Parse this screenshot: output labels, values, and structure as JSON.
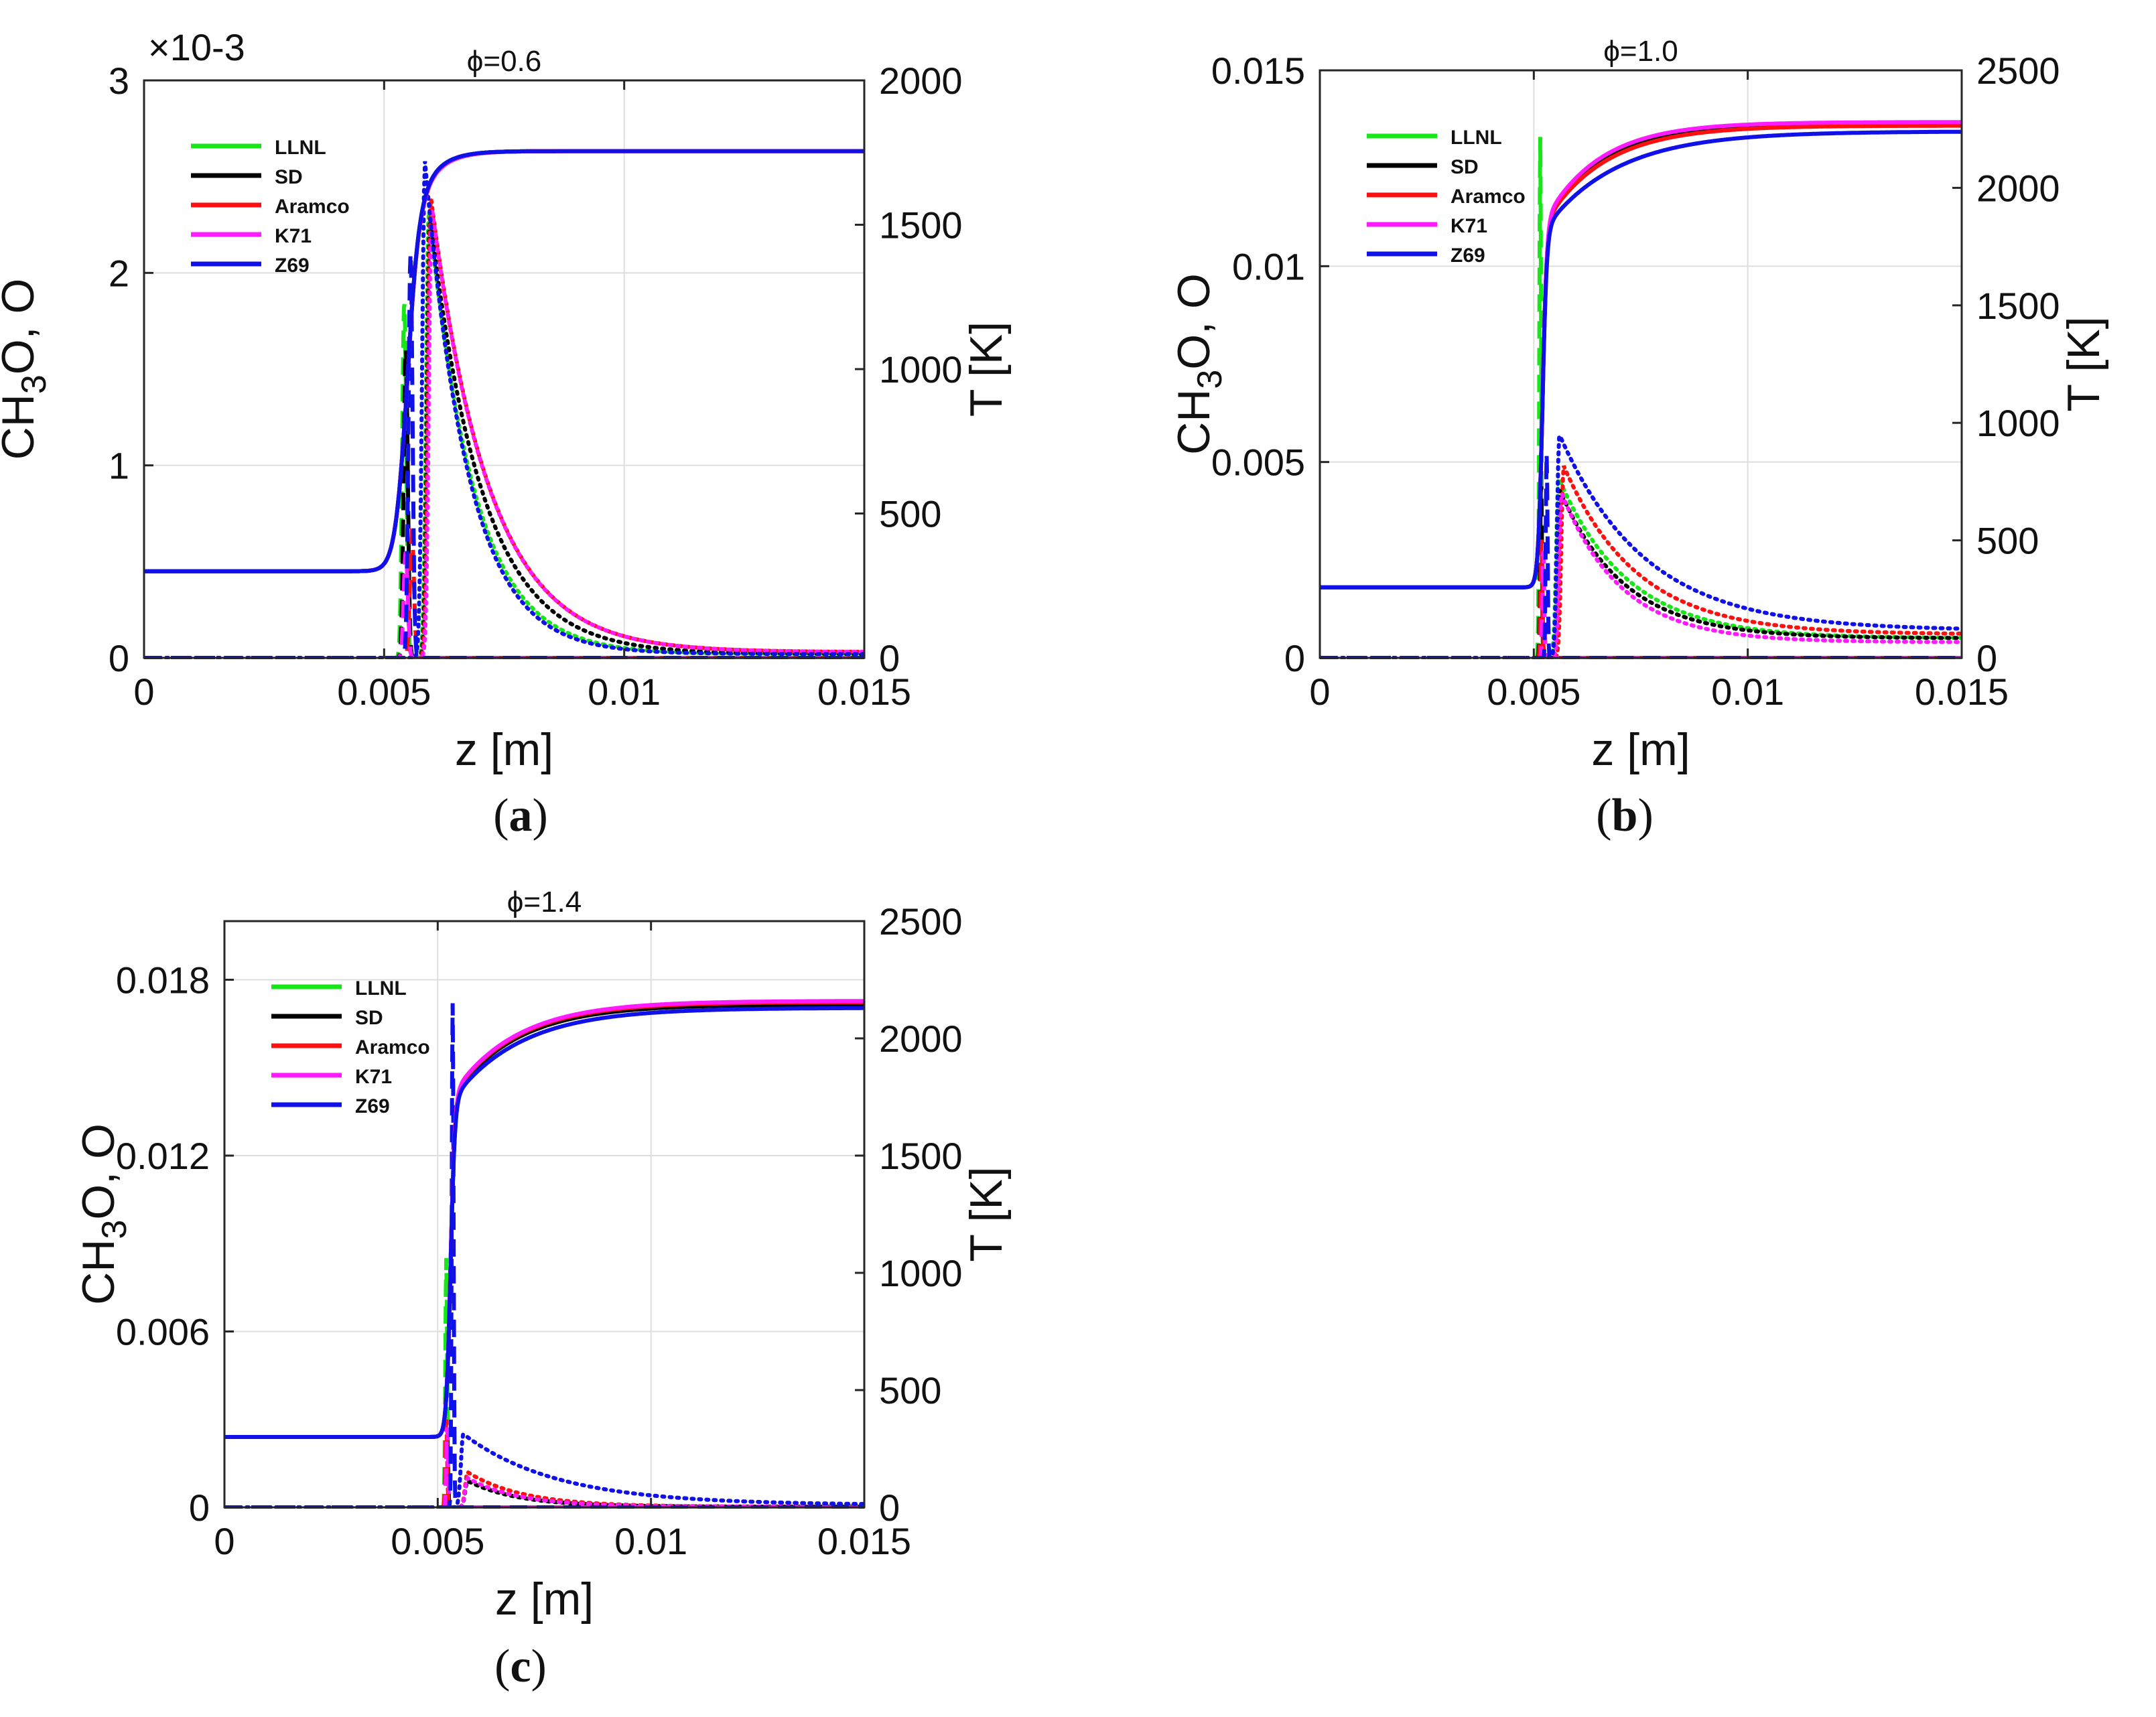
{
  "figure": {
    "panels": [
      {
        "caption": "(a)",
        "caption_letter": "a",
        "phi_label": "ϕ=0.6"
      },
      {
        "caption": "(b)",
        "caption_letter": "b",
        "phi_label": "ϕ=1.0"
      },
      {
        "caption": "(c)",
        "caption_letter": "c",
        "phi_label": "ϕ=1.4"
      }
    ]
  },
  "chart_data": [
    {
      "type": "line",
      "title": "ϕ=0.6",
      "xlabel": "z [m]",
      "ylabel": "CH3O, O",
      "y2label": "T [K]",
      "xlim": [
        0,
        0.015
      ],
      "ylim": [
        0,
        0.003
      ],
      "y2lim": [
        0,
        2000
      ],
      "xticks": [
        "0",
        "0.005",
        "0.01",
        "0.015"
      ],
      "yticks": [
        "0",
        "1",
        "2",
        "3"
      ],
      "y2ticks": [
        "0",
        "500",
        "1000",
        "1500",
        "2000"
      ],
      "yscale_label": "×10-3",
      "grid": true,
      "legend_position": "top-left",
      "legend": [
        "LLNL",
        "SD",
        "Aramco",
        "K71",
        "Z69"
      ],
      "colors": [
        "#19e619",
        "#000000",
        "#ff1010",
        "#ff1aff",
        "#1010e8"
      ],
      "series": [
        {
          "name": "LLNL",
          "temperature": {
            "T0": 300,
            "Tmax": 1755,
            "z0": 0.00545,
            "w": 0.00012,
            "tau": 0.0004
          },
          "ch3o": {
            "peak": 0.00185,
            "zp": 0.00542,
            "w": 6e-05
          },
          "o": {
            "peak": 0.00233,
            "zp": 0.00593,
            "rise": 8e-05,
            "decay": 0.00095,
            "tail": 2e-05
          }
        },
        {
          "name": "SD",
          "temperature": {
            "T0": 300,
            "Tmax": 1755,
            "z0": 0.00545,
            "w": 0.00012,
            "tau": 0.0004
          },
          "ch3o": {
            "peak": 0.0016,
            "zp": 0.00545,
            "w": 6e-05
          },
          "o": {
            "peak": 0.0023,
            "zp": 0.00595,
            "rise": 8e-05,
            "decay": 0.0011,
            "tail": 2e-05
          }
        },
        {
          "name": "Aramco",
          "temperature": {
            "T0": 300,
            "Tmax": 1755,
            "z0": 0.00545,
            "w": 0.00012,
            "tau": 0.00042
          },
          "ch3o": {
            "peak": 0.00065,
            "zp": 0.00558,
            "w": 6e-05
          },
          "o": {
            "peak": 0.0024,
            "zp": 0.00597,
            "rise": 8e-05,
            "decay": 0.0012,
            "tail": 3e-05
          }
        },
        {
          "name": "K71",
          "temperature": {
            "T0": 300,
            "Tmax": 1755,
            "z0": 0.00545,
            "w": 0.00012,
            "tau": 0.00042
          },
          "ch3o": {
            "peak": 0.00055,
            "zp": 0.00545,
            "w": 6e-05
          },
          "o": {
            "peak": 0.00235,
            "zp": 0.00599,
            "rise": 8e-05,
            "decay": 0.0012,
            "tail": 3e-05
          }
        },
        {
          "name": "Z69",
          "temperature": {
            "T0": 300,
            "Tmax": 1755,
            "z0": 0.00545,
            "w": 0.00012,
            "tau": 0.0004
          },
          "ch3o": {
            "peak": 0.0021,
            "zp": 0.00555,
            "w": 6e-05
          },
          "o": {
            "peak": 0.00258,
            "zp": 0.00585,
            "rise": 8e-05,
            "decay": 0.0009,
            "tail": 2e-05
          }
        }
      ]
    },
    {
      "type": "line",
      "title": "ϕ=1.0",
      "xlabel": "z [m]",
      "ylabel": "CH3O, O",
      "y2label": "T [K]",
      "xlim": [
        0,
        0.015
      ],
      "ylim": [
        0,
        0.015
      ],
      "y2lim": [
        0,
        2500
      ],
      "xticks": [
        "0",
        "0.005",
        "0.01",
        "0.015"
      ],
      "yticks": [
        "0",
        "0.005",
        "0.01",
        "0.015"
      ],
      "y2ticks": [
        "0",
        "500",
        "1000",
        "1500",
        "2000",
        "2500"
      ],
      "grid": true,
      "legend_position": "top-left",
      "legend": [
        "LLNL",
        "SD",
        "Aramco",
        "K71",
        "Z69"
      ],
      "colors": [
        "#19e619",
        "#000000",
        "#ff1010",
        "#ff1aff",
        "#1010e8"
      ],
      "series": [
        {
          "name": "LLNL",
          "temperature": {
            "T0": 300,
            "Tmax": 2270,
            "z0": 0.0052,
            "w": 5e-05,
            "tau": 0.0013
          },
          "ch3o": {
            "peak": 0.0133,
            "zp": 0.00515,
            "w": 3e-05
          },
          "o": {
            "peak": 0.0046,
            "zp": 0.00558,
            "rise": 8e-05,
            "decay": 0.0016,
            "tail": 0.0005
          }
        },
        {
          "name": "SD",
          "temperature": {
            "T0": 300,
            "Tmax": 2265,
            "z0": 0.0052,
            "w": 5e-05,
            "tau": 0.0013
          },
          "ch3o": {
            "peak": 0.0045,
            "zp": 0.00517,
            "w": 3e-05
          },
          "o": {
            "peak": 0.0043,
            "zp": 0.0056,
            "rise": 8e-05,
            "decay": 0.0015,
            "tail": 0.0005
          }
        },
        {
          "name": "Aramco",
          "temperature": {
            "T0": 300,
            "Tmax": 2265,
            "z0": 0.0052,
            "w": 5e-05,
            "tau": 0.0014
          },
          "ch3o": {
            "peak": 0.0031,
            "zp": 0.00518,
            "w": 3e-05
          },
          "o": {
            "peak": 0.0049,
            "zp": 0.0057,
            "rise": 8e-05,
            "decay": 0.0017,
            "tail": 0.0006
          }
        },
        {
          "name": "K71",
          "temperature": {
            "T0": 300,
            "Tmax": 2280,
            "z0": 0.0052,
            "w": 5e-05,
            "tau": 0.0013
          },
          "ch3o": {
            "peak": 0.0028,
            "zp": 0.00522,
            "w": 3e-05
          },
          "o": {
            "peak": 0.0042,
            "zp": 0.00565,
            "rise": 8e-05,
            "decay": 0.0014,
            "tail": 0.0004
          }
        },
        {
          "name": "Z69",
          "temperature": {
            "T0": 300,
            "Tmax": 2240,
            "z0": 0.0052,
            "w": 5e-05,
            "tau": 0.0017
          },
          "ch3o": {
            "peak": 0.0052,
            "zp": 0.0053,
            "w": 3e-05
          },
          "o": {
            "peak": 0.0057,
            "zp": 0.0056,
            "rise": 8e-05,
            "decay": 0.002,
            "tail": 0.0007
          }
        }
      ]
    },
    {
      "type": "line",
      "title": "ϕ=1.4",
      "xlabel": "z [m]",
      "ylabel": "CH3O, O",
      "y2label": "T [K]",
      "xlim": [
        0,
        0.015
      ],
      "ylim": [
        0,
        0.02
      ],
      "y2lim": [
        0,
        2500
      ],
      "xticks": [
        "0",
        "0.005",
        "0.01",
        "0.015"
      ],
      "yticks": [
        "0",
        "0.006",
        "0.012",
        "0.018"
      ],
      "y2ticks": [
        "0",
        "500",
        "1000",
        "1500",
        "2000",
        "2500"
      ],
      "grid": true,
      "legend_position": "top-left",
      "legend": [
        "LLNL",
        "SD",
        "Aramco",
        "K71",
        "Z69"
      ],
      "colors": [
        "#19e619",
        "#000000",
        "#ff1010",
        "#ff1aff",
        "#1010e8"
      ],
      "series": [
        {
          "name": "LLNL",
          "temperature": {
            "T0": 300,
            "Tmax": 2150,
            "z0": 0.0053,
            "w": 5e-05,
            "tau": 0.0015
          },
          "ch3o": {
            "peak": 0.0085,
            "zp": 0.0052,
            "w": 3e-05
          },
          "o": {
            "peak": 0.0009,
            "zp": 0.0057,
            "rise": 8e-05,
            "decay": 0.0012,
            "tail": 2e-05
          }
        },
        {
          "name": "SD",
          "temperature": {
            "T0": 300,
            "Tmax": 2145,
            "z0": 0.0053,
            "w": 5e-05,
            "tau": 0.0015
          },
          "ch3o": {
            "peak": 0.0025,
            "zp": 0.00522,
            "w": 3e-05
          },
          "o": {
            "peak": 0.0009,
            "zp": 0.0057,
            "rise": 8e-05,
            "decay": 0.0012,
            "tail": 2e-05
          }
        },
        {
          "name": "Aramco",
          "temperature": {
            "T0": 300,
            "Tmax": 2155,
            "z0": 0.0053,
            "w": 5e-05,
            "tau": 0.0015
          },
          "ch3o": {
            "peak": 0.003,
            "zp": 0.0052,
            "w": 3e-05
          },
          "o": {
            "peak": 0.0012,
            "zp": 0.0057,
            "rise": 8e-05,
            "decay": 0.0013,
            "tail": 2e-05
          }
        },
        {
          "name": "K71",
          "temperature": {
            "T0": 300,
            "Tmax": 2160,
            "z0": 0.0053,
            "w": 5e-05,
            "tau": 0.0015
          },
          "ch3o": {
            "peak": 0.0028,
            "zp": 0.00522,
            "w": 3e-05
          },
          "o": {
            "peak": 0.001,
            "zp": 0.0057,
            "rise": 8e-05,
            "decay": 0.0012,
            "tail": 2e-05
          }
        },
        {
          "name": "Z69",
          "temperature": {
            "T0": 300,
            "Tmax": 2130,
            "z0": 0.0053,
            "w": 5e-05,
            "tau": 0.0016
          },
          "ch3o": {
            "peak": 0.0172,
            "zp": 0.00535,
            "w": 3e-05
          },
          "o": {
            "peak": 0.0025,
            "zp": 0.0056,
            "rise": 8e-05,
            "decay": 0.0022,
            "tail": 8e-05
          }
        }
      ]
    }
  ]
}
